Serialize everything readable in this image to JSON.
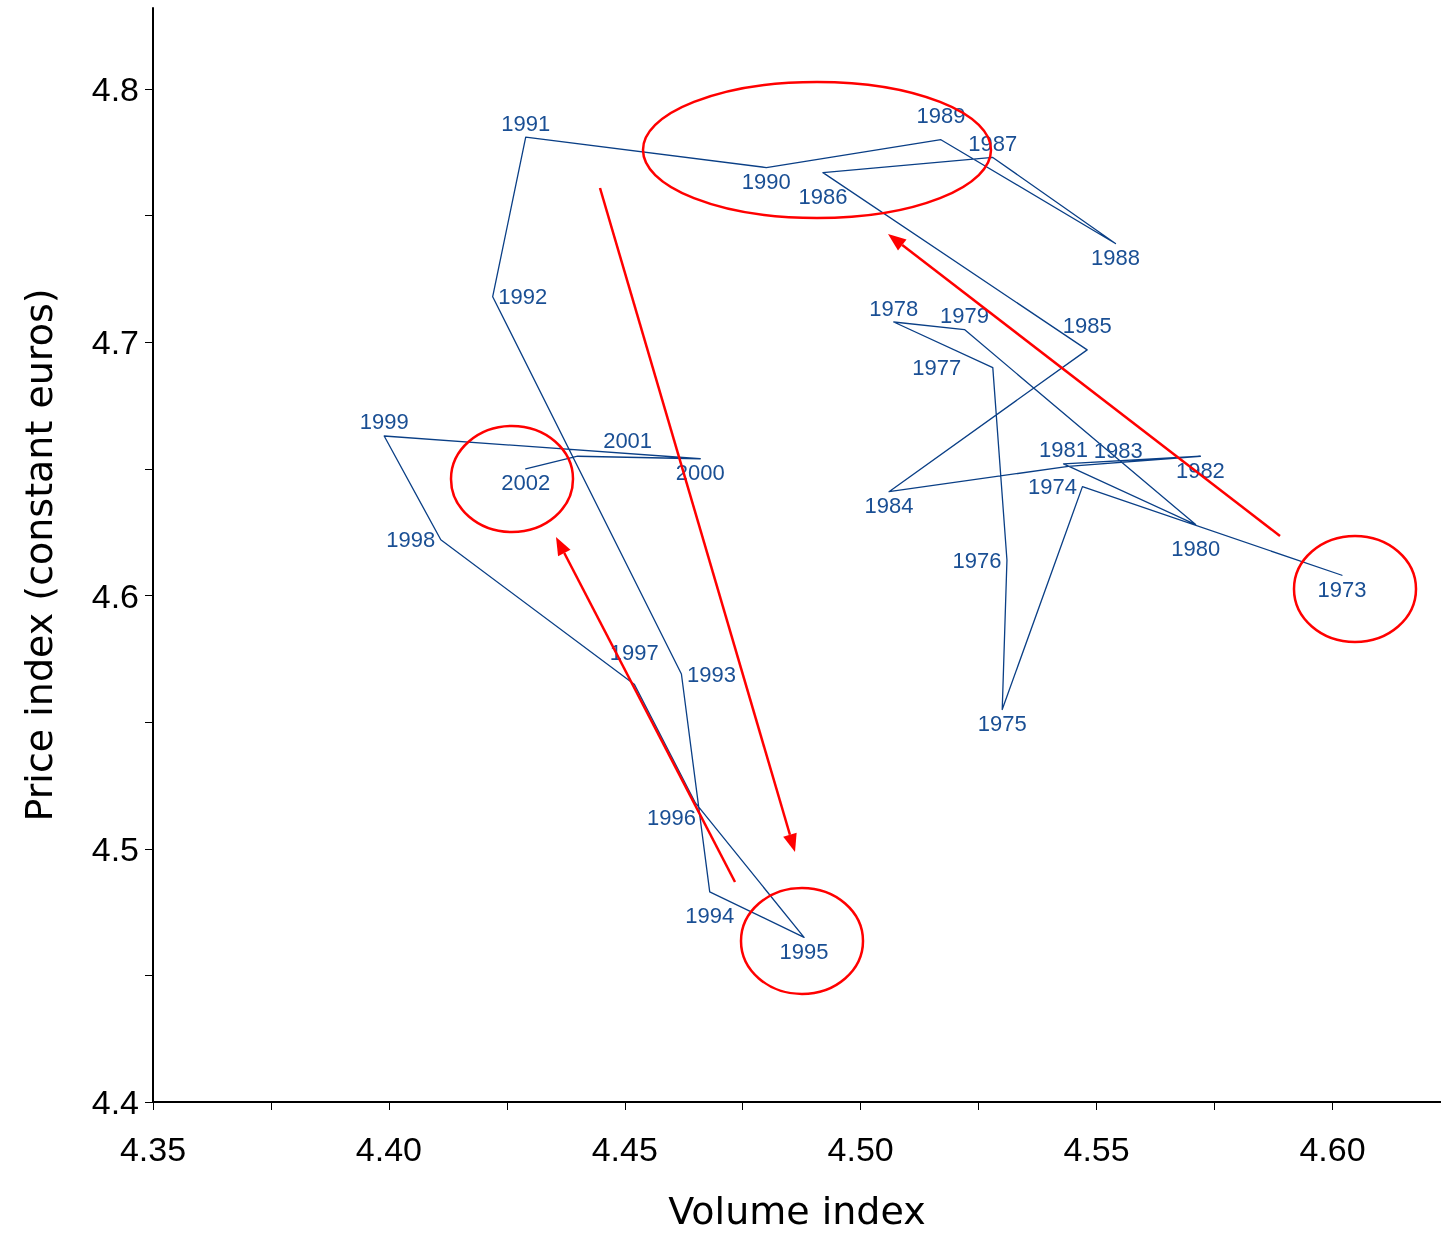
{
  "chart_data": {
    "type": "line",
    "xlabel": "Volume index",
    "ylabel": "Price index (constant euros)",
    "x": [
      4.602,
      4.547,
      4.53,
      4.531,
      4.528,
      4.507,
      4.522,
      4.571,
      4.543,
      4.572,
      4.544,
      4.506,
      4.548,
      4.492,
      4.528,
      4.554,
      4.517,
      4.48,
      4.429,
      4.422,
      4.462,
      4.468,
      4.488,
      4.465,
      4.452,
      4.411,
      4.399,
      4.466,
      4.44,
      4.429
    ],
    "values": [
      4.608,
      4.643,
      4.555,
      4.614,
      4.69,
      4.708,
      4.705,
      4.628,
      4.652,
      4.655,
      4.651,
      4.641,
      4.697,
      4.767,
      4.773,
      4.739,
      4.78,
      4.769,
      4.781,
      4.718,
      4.569,
      4.483,
      4.465,
      4.518,
      4.565,
      4.622,
      4.663,
      4.654,
      4.655,
      4.65
    ],
    "annotations": [
      {
        "text": "1973",
        "x": 4.602,
        "y": 4.608
      },
      {
        "text": "1974",
        "x": 4.547,
        "y": 4.643
      },
      {
        "text": "1975",
        "x": 4.53,
        "y": 4.555
      },
      {
        "text": "1976",
        "x": 4.531,
        "y": 4.614
      },
      {
        "text": "1977",
        "x": 4.528,
        "y": 4.69
      },
      {
        "text": "1978",
        "x": 4.507,
        "y": 4.708
      },
      {
        "text": "1979",
        "x": 4.522,
        "y": 4.705
      },
      {
        "text": "1980",
        "x": 4.571,
        "y": 4.628
      },
      {
        "text": "1981",
        "x": 4.543,
        "y": 4.652
      },
      {
        "text": "1982",
        "x": 4.572,
        "y": 4.655
      },
      {
        "text": "1983",
        "x": 4.544,
        "y": 4.651
      },
      {
        "text": "1984",
        "x": 4.506,
        "y": 4.641
      },
      {
        "text": "1985",
        "x": 4.548,
        "y": 4.697
      },
      {
        "text": "1986",
        "x": 4.492,
        "y": 4.767
      },
      {
        "text": "1987",
        "x": 4.528,
        "y": 4.773
      },
      {
        "text": "1988",
        "x": 4.554,
        "y": 4.739
      },
      {
        "text": "1989",
        "x": 4.517,
        "y": 4.78
      },
      {
        "text": "1990",
        "x": 4.48,
        "y": 4.769
      },
      {
        "text": "1991",
        "x": 4.429,
        "y": 4.781
      },
      {
        "text": "1992",
        "x": 4.422,
        "y": 4.718
      },
      {
        "text": "1993",
        "x": 4.462,
        "y": 4.569
      },
      {
        "text": "1994",
        "x": 4.468,
        "y": 4.483
      },
      {
        "text": "1995",
        "x": 4.488,
        "y": 4.465
      },
      {
        "text": "1996",
        "x": 4.465,
        "y": 4.518
      },
      {
        "text": "1997",
        "x": 4.452,
        "y": 4.565
      },
      {
        "text": "1998",
        "x": 4.411,
        "y": 4.622
      },
      {
        "text": "1999",
        "x": 4.399,
        "y": 4.663
      },
      {
        "text": "2000",
        "x": 4.466,
        "y": 4.654
      },
      {
        "text": "2001",
        "x": 4.44,
        "y": 4.655
      },
      {
        "text": "2002",
        "x": 4.429,
        "y": 4.65
      }
    ],
    "color": "#0a3f86",
    "xlim": [
      4.35,
      4.623
    ],
    "ylim": [
      4.4,
      4.832
    ],
    "xticks": [
      {
        "value": 4.35,
        "label": "4.35"
      },
      {
        "value": 4.375,
        "label": null
      },
      {
        "value": 4.4,
        "label": "4.40"
      },
      {
        "value": 4.425,
        "label": null
      },
      {
        "value": 4.45,
        "label": "4.45"
      },
      {
        "value": 4.475,
        "label": null
      },
      {
        "value": 4.5,
        "label": "4.50"
      },
      {
        "value": 4.525,
        "label": null
      },
      {
        "value": 4.55,
        "label": "4.55"
      },
      {
        "value": 4.575,
        "label": null
      },
      {
        "value": 4.6,
        "label": "4.60"
      }
    ],
    "yticks": [
      4.4,
      {
        "value": 4.45,
        "label": null
      },
      4.5,
      {
        "value": 4.55,
        "label": null
      },
      4.6,
      {
        "value": 4.65,
        "label": null
      },
      4.7,
      {
        "value": 4.75,
        "label": null
      },
      4.8
    ],
    "marker": "none",
    "line_style": "solid",
    "grid": false
  }
}
